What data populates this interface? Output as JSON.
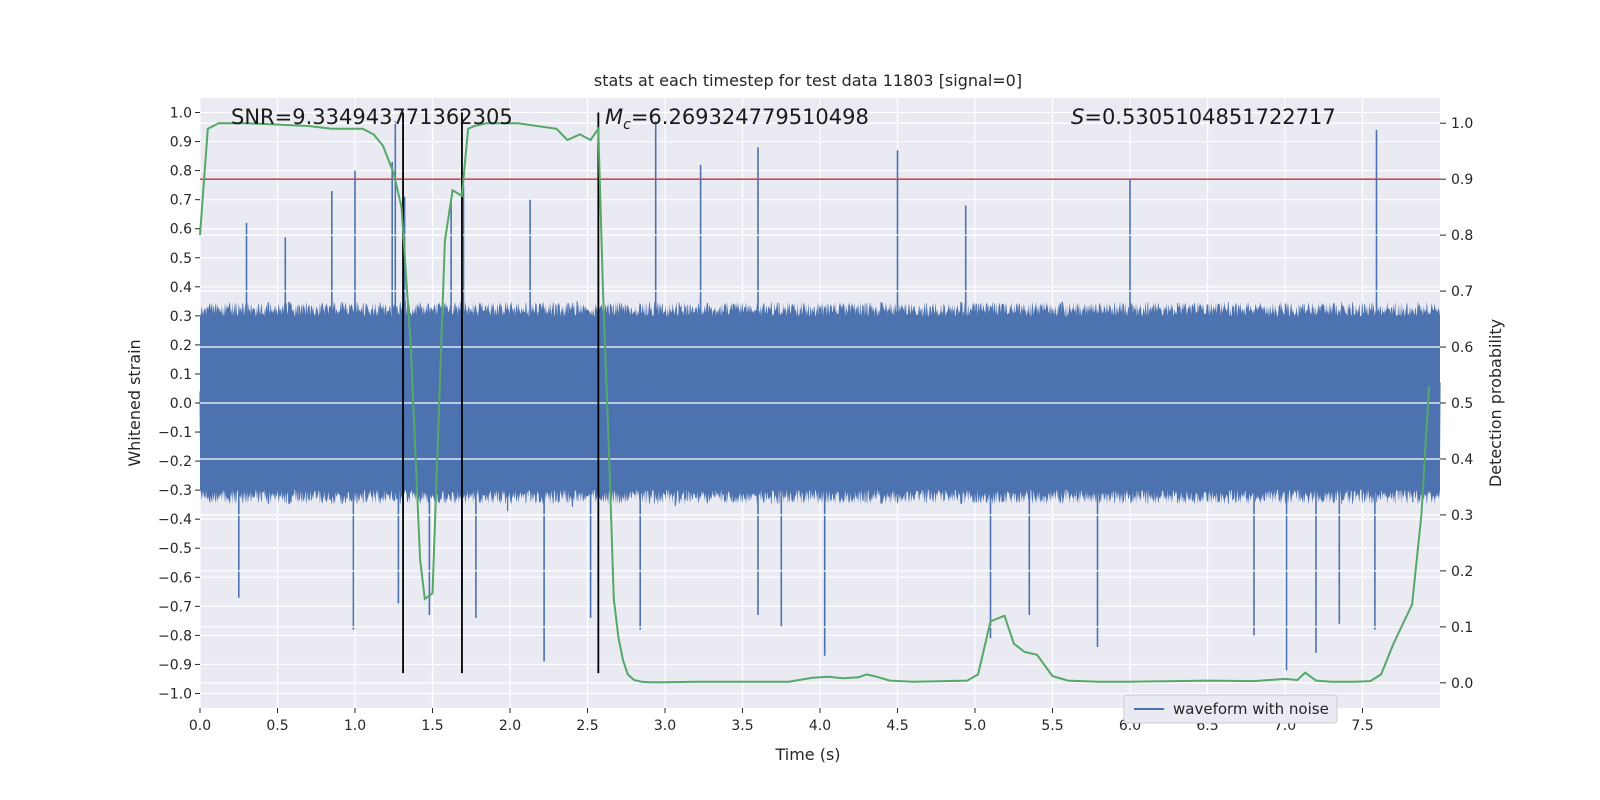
{
  "chart_data": {
    "type": "line",
    "title": "stats at each timestep for test data 11803 [signal=0]",
    "xlabel": "Time (s)",
    "ylabel": "Whitened strain",
    "y2label": "Detection probability",
    "xlim": [
      0,
      8
    ],
    "ylim": [
      -1.05,
      1.05
    ],
    "y2lim": [
      -0.045,
      1.045
    ],
    "xticks": [
      "0.0",
      "0.5",
      "1.0",
      "1.5",
      "2.0",
      "2.5",
      "3.0",
      "3.5",
      "4.0",
      "4.5",
      "5.0",
      "5.5",
      "6.0",
      "6.5",
      "7.0",
      "7.5"
    ],
    "yticks": [
      "1.0",
      "0.9",
      "0.8",
      "0.7",
      "0.6",
      "0.5",
      "0.4",
      "0.3",
      "0.2",
      "0.1",
      "0.0",
      "−0.1",
      "−0.2",
      "−0.3",
      "−0.4",
      "−0.5",
      "−0.6",
      "−0.7",
      "−0.8",
      "−0.9",
      "−1.0"
    ],
    "y2ticks": [
      "1.0",
      "0.9",
      "0.8",
      "0.7",
      "0.6",
      "0.5",
      "0.4",
      "0.3",
      "0.2",
      "0.1",
      "0.0"
    ],
    "grid": true,
    "legend_position": "bottom-right",
    "annotations": {
      "snr": "SNR=9.334943771362305",
      "mc_symbol": "M",
      "mc_sub": "c",
      "mc_value": "=6.269324779510498",
      "s_symbol": "S",
      "s_value": "=0.5305104851722717"
    },
    "threshold": 0.9,
    "vlines": [
      1.31,
      1.69,
      2.57
    ],
    "vline_range": [
      -0.93,
      1.0
    ],
    "series": [
      {
        "name": "waveform with noise",
        "kind": "noise-strain",
        "color": "#4c72b0",
        "seed": 11803,
        "sample_rate": 256,
        "core_band": 0.35,
        "envelope_peak": 0.75,
        "spikes_up": [
          [
            0.3,
            0.62
          ],
          [
            0.55,
            0.57
          ],
          [
            0.85,
            0.73
          ],
          [
            1.0,
            0.8
          ],
          [
            1.24,
            0.83
          ],
          [
            1.26,
            0.97
          ],
          [
            1.32,
            0.71
          ],
          [
            1.62,
            0.7
          ],
          [
            1.7,
            0.75
          ],
          [
            2.13,
            0.7
          ],
          [
            2.57,
            0.74
          ],
          [
            2.94,
            0.97
          ],
          [
            3.23,
            0.82
          ],
          [
            3.6,
            0.88
          ],
          [
            4.5,
            0.87
          ],
          [
            4.94,
            0.68
          ],
          [
            6.0,
            0.77
          ],
          [
            7.59,
            0.94
          ]
        ],
        "spikes_down": [
          [
            0.25,
            -0.67
          ],
          [
            0.99,
            -0.78
          ],
          [
            1.28,
            -0.69
          ],
          [
            1.48,
            -0.73
          ],
          [
            1.69,
            -0.67
          ],
          [
            1.78,
            -0.74
          ],
          [
            2.22,
            -0.89
          ],
          [
            2.52,
            -0.74
          ],
          [
            2.84,
            -0.78
          ],
          [
            3.6,
            -0.73
          ],
          [
            3.75,
            -0.77
          ],
          [
            4.03,
            -0.87
          ],
          [
            5.1,
            -0.81
          ],
          [
            5.35,
            -0.73
          ],
          [
            5.79,
            -0.84
          ],
          [
            6.8,
            -0.8
          ],
          [
            7.01,
            -0.92
          ],
          [
            7.2,
            -0.86
          ],
          [
            7.35,
            -0.76
          ],
          [
            7.58,
            -0.78
          ]
        ]
      },
      {
        "name": "",
        "kind": "detection-probability",
        "color": "#55a868",
        "x": [
          0.0,
          0.05,
          0.12,
          0.3,
          0.7,
          0.85,
          0.95,
          1.05,
          1.12,
          1.18,
          1.25,
          1.3,
          1.36,
          1.42,
          1.45,
          1.5,
          1.58,
          1.63,
          1.69,
          1.73,
          1.77,
          1.85,
          2.05,
          2.3,
          2.37,
          2.45,
          2.52,
          2.57,
          2.6,
          2.64,
          2.67,
          2.7,
          2.73,
          2.76,
          2.8,
          2.85,
          2.9,
          3.0,
          3.2,
          3.5,
          3.8,
          3.95,
          4.05,
          4.15,
          4.25,
          4.3,
          4.35,
          4.45,
          4.6,
          4.8,
          4.95,
          5.02,
          5.1,
          5.19,
          5.25,
          5.32,
          5.4,
          5.5,
          5.6,
          5.8,
          6.0,
          6.3,
          6.5,
          6.8,
          7.0,
          7.08,
          7.13,
          7.2,
          7.3,
          7.45,
          7.55,
          7.62,
          7.7,
          7.82,
          7.88,
          7.93
        ],
        "values": [
          0.8,
          0.99,
          1.0,
          1.0,
          0.995,
          0.99,
          0.99,
          0.99,
          0.98,
          0.96,
          0.91,
          0.85,
          0.6,
          0.22,
          0.15,
          0.16,
          0.79,
          0.88,
          0.87,
          0.99,
          0.995,
          1.0,
          1.0,
          0.99,
          0.97,
          0.98,
          0.97,
          0.99,
          0.7,
          0.4,
          0.15,
          0.08,
          0.04,
          0.015,
          0.005,
          0.002,
          0.001,
          0.001,
          0.002,
          0.002,
          0.002,
          0.009,
          0.011,
          0.008,
          0.01,
          0.015,
          0.012,
          0.004,
          0.002,
          0.003,
          0.004,
          0.015,
          0.11,
          0.12,
          0.07,
          0.055,
          0.05,
          0.012,
          0.004,
          0.002,
          0.002,
          0.003,
          0.004,
          0.003,
          0.007,
          0.005,
          0.018,
          0.004,
          0.002,
          0.002,
          0.003,
          0.015,
          0.07,
          0.14,
          0.3,
          0.53
        ]
      }
    ]
  }
}
